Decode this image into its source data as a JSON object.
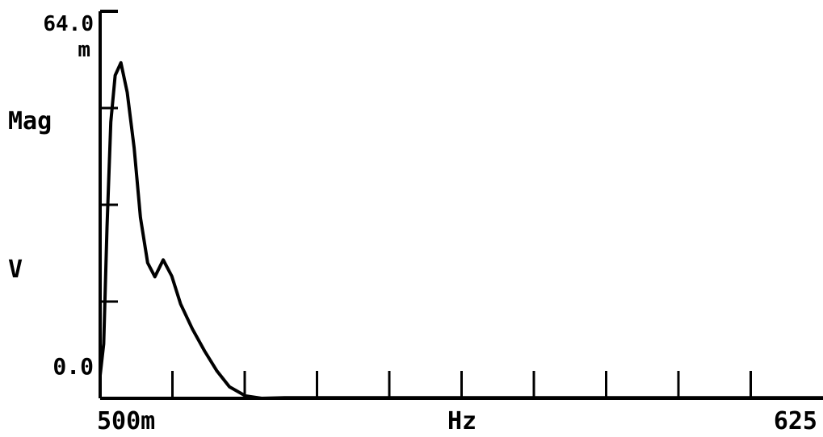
{
  "chart_data": {
    "type": "line",
    "ylabel_top": "Mag",
    "ylabel_unit": "V",
    "y_max_label": "64.0",
    "y_max_unit_prefix": "m",
    "y_min_label": "0.0",
    "x_start_label": "500m",
    "x_unit_label": "Hz",
    "x_end_label": "625",
    "xlim": [
      0.5,
      625
    ],
    "ylim": [
      0,
      64.0
    ],
    "y_unit": "mV",
    "x_unit": "Hz",
    "grid": false,
    "series": [
      {
        "x": [
          0.5,
          3.6,
          6.4,
          9.7,
          13.5,
          18.4,
          23.9,
          29.9,
          35.3,
          41.5,
          47.8,
          55,
          62.4,
          70,
          80.1,
          90.8,
          101.5,
          112.2,
          126,
          140,
          160,
          200,
          250,
          300,
          400,
          500,
          625
        ],
        "y": [
          3.8,
          9,
          28.3,
          45.7,
          53.4,
          55.5,
          50.6,
          41.4,
          29.9,
          22.4,
          20.1,
          22.9,
          20.2,
          15.6,
          11.5,
          7.8,
          4.5,
          1.9,
          0.4,
          0,
          0.1,
          0.1,
          0.1,
          0.1,
          0.1,
          0.1,
          0.1
        ]
      }
    ],
    "line_color": "#000000"
  }
}
